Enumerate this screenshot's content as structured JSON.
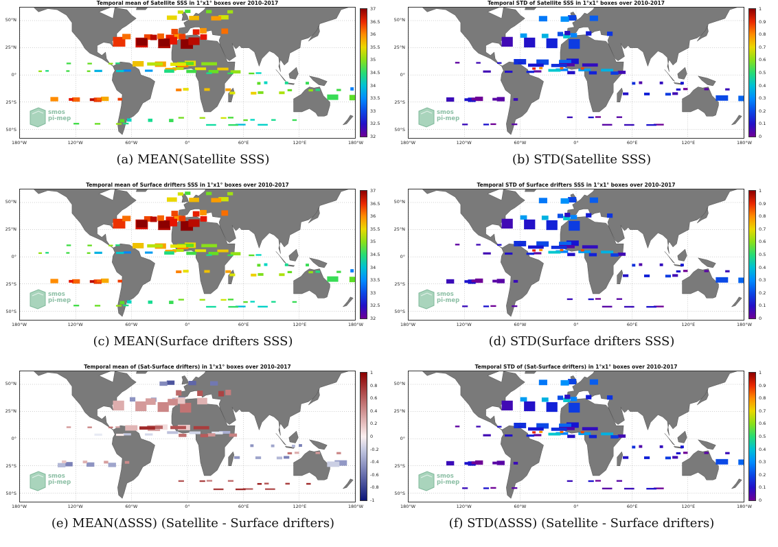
{
  "panels": [
    {
      "title": "Temporal mean of Satellite SSS in 1°x1° boxes over 2010-2017",
      "caption": "(a) MEAN(Satellite SSS)",
      "colorbar": {
        "ticks": [
          "37",
          "36.5",
          "36",
          "35.5",
          "35",
          "34.5",
          "34",
          "33.5",
          "33",
          "32.5",
          "32"
        ],
        "scale": "rainbow-jet-reversed",
        "range": [
          31.5,
          37
        ]
      },
      "logo": "smos pi-mep"
    },
    {
      "title": "Temporal STD of Satellite SSS in 1°x1° boxes over 2010-2017",
      "caption": "(b) STD(Satellite SSS)",
      "colorbar": {
        "ticks": [
          "1",
          "0.9",
          "0.8",
          "0.7",
          "0.6",
          "0.5",
          "0.4",
          "0.3",
          "0.2",
          "0.1",
          "0"
        ],
        "scale": "rainbow-jet",
        "range": [
          0,
          1
        ]
      },
      "logo": "smos pi-mep"
    },
    {
      "title": "Temporal mean of Surface drifters SSS in 1°x1° boxes over 2010-2017",
      "caption": "(c) MEAN(Surface drifters SSS)",
      "colorbar": {
        "ticks": [
          "37",
          "36.5",
          "36",
          "35.5",
          "35",
          "34.5",
          "34",
          "33.5",
          "33",
          "32.5",
          "32"
        ],
        "scale": "rainbow-jet-reversed",
        "range": [
          31.5,
          37
        ]
      },
      "logo": "smos pi-mep"
    },
    {
      "title": "Temporal STD of Surface drifters SSS in 1°x1° boxes over 2010-2017",
      "caption": "(d) STD(Surface drifters SSS)",
      "colorbar": {
        "ticks": [
          "1",
          "0.9",
          "0.8",
          "0.7",
          "0.6",
          "0.5",
          "0.4",
          "0.3",
          "0.2",
          "0.1",
          "0"
        ],
        "scale": "rainbow-jet",
        "range": [
          0,
          1
        ]
      },
      "logo": "smos pi-mep"
    },
    {
      "title": "Temporal mean of (Sat-Surface drifters) in 1°x1° boxes over 2010-2017",
      "caption": "(e) MEAN(ΔSSS) (Satellite - Surface drifters)",
      "colorbar": {
        "ticks": [
          "1",
          "0.8",
          "0.6",
          "0.4",
          "0.2",
          "0",
          "-0.2",
          "-0.4",
          "-0.6",
          "-0.8",
          "-1"
        ],
        "scale": "blue-white-red",
        "range": [
          -1,
          1
        ]
      },
      "logo": "smos pi-mep"
    },
    {
      "title": "Temporal STD of (Sat-Surface drifters) in 1°x1° boxes over 2010-2017",
      "caption": "(f) STD(ΔSSS) (Satellite - Surface drifters)",
      "colorbar": {
        "ticks": [
          "1",
          "0.9",
          "0.8",
          "0.7",
          "0.6",
          "0.5",
          "0.4",
          "0.3",
          "0.2",
          "0.1",
          "0"
        ],
        "scale": "rainbow-jet",
        "range": [
          0,
          1
        ]
      },
      "logo": "smos pi-mep"
    }
  ],
  "axes": {
    "lat_labels": [
      "50°N",
      "25°N",
      "0°",
      "25°S",
      "50°S"
    ],
    "lon_labels": [
      "180°W",
      "120°W",
      "60°W",
      "0°",
      "60°E",
      "120°E",
      "180°W"
    ]
  },
  "colors": {
    "land": "#7a7a7a",
    "coast": "#3a3a3a",
    "grid": "#9a9a9a"
  }
}
